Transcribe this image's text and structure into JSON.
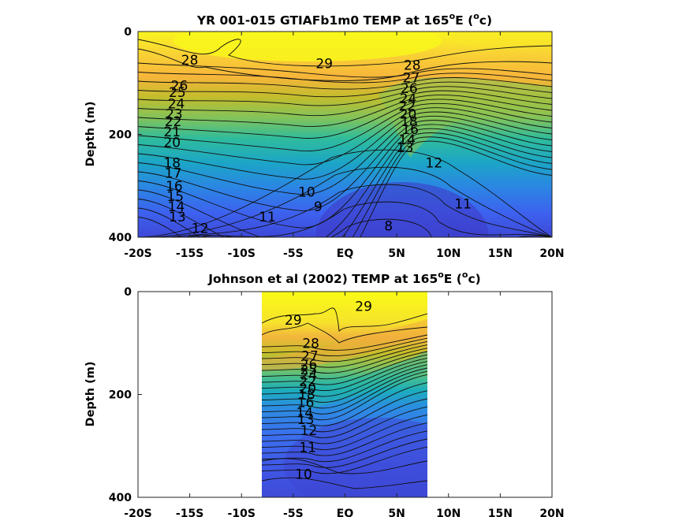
{
  "chart_data": [
    {
      "type": "contour",
      "title": "YR 001-015 GTIAFb1m0 TEMP at 165",
      "title_sup": "o",
      "title_end": "E (",
      "title_sup2": "o",
      "title_tail": "c)",
      "xlabel": "",
      "ylabel": "Depth (m)",
      "x_ticks": [
        "-20S",
        "-15S",
        "-10S",
        "-5S",
        "EQ",
        "5N",
        "10N",
        "15N",
        "20N"
      ],
      "y_ticks": [
        "0",
        "200",
        "400"
      ],
      "xlim": [
        -20,
        20
      ],
      "ylim": [
        0,
        400
      ],
      "y_reversed": true,
      "colormap": "parula",
      "contour_interval": 1,
      "contour_labels": [
        {
          "text": "29",
          "x": -2,
          "y": 62
        },
        {
          "text": "28",
          "x": 6.5,
          "y": 65
        },
        {
          "text": "28",
          "x": -15,
          "y": 55
        },
        {
          "text": "27",
          "x": 6.4,
          "y": 90
        },
        {
          "text": "26",
          "x": 6.2,
          "y": 110
        },
        {
          "text": "26",
          "x": -16,
          "y": 105
        },
        {
          "text": "25",
          "x": -16.2,
          "y": 118
        },
        {
          "text": "24",
          "x": -16.3,
          "y": 140
        },
        {
          "text": "23",
          "x": -16.5,
          "y": 160
        },
        {
          "text": "22",
          "x": -16.6,
          "y": 175
        },
        {
          "text": "21",
          "x": -16.7,
          "y": 195
        },
        {
          "text": "20",
          "x": -16.7,
          "y": 215
        },
        {
          "text": "18",
          "x": -16.7,
          "y": 255
        },
        {
          "text": "17",
          "x": -16.6,
          "y": 275
        },
        {
          "text": "16",
          "x": -16.5,
          "y": 300
        },
        {
          "text": "15",
          "x": -16.4,
          "y": 320
        },
        {
          "text": "14",
          "x": -16.3,
          "y": 340
        },
        {
          "text": "13",
          "x": -16.2,
          "y": 360
        },
        {
          "text": "12",
          "x": -14,
          "y": 382
        },
        {
          "text": "11",
          "x": -7.5,
          "y": 360
        },
        {
          "text": "10",
          "x": -3.7,
          "y": 312
        },
        {
          "text": "9",
          "x": -2.6,
          "y": 340
        },
        {
          "text": "8",
          "x": 4.2,
          "y": 378
        },
        {
          "text": "12",
          "x": 8.6,
          "y": 255
        },
        {
          "text": "11",
          "x": 11.4,
          "y": 335
        },
        {
          "text": "13",
          "x": 5.8,
          "y": 225
        },
        {
          "text": "14",
          "x": 6.0,
          "y": 210
        },
        {
          "text": "16",
          "x": 6.3,
          "y": 190
        },
        {
          "text": "18",
          "x": 6.2,
          "y": 175
        },
        {
          "text": "20",
          "x": 6.1,
          "y": 160
        },
        {
          "text": "22",
          "x": 6.0,
          "y": 145
        },
        {
          "text": "24",
          "x": 6.1,
          "y": 130
        }
      ]
    },
    {
      "type": "contour",
      "title": "Johnson et al (2002) TEMP at 165",
      "title_sup": "o",
      "title_end": "E (",
      "title_sup2": "o",
      "title_tail": "c)",
      "xlabel": "",
      "ylabel": "Depth (m)",
      "x_ticks": [
        "-20S",
        "-15S",
        "-10S",
        "-5S",
        "EQ",
        "5N",
        "10N",
        "15N",
        "20N"
      ],
      "y_ticks": [
        "0",
        "200",
        "400"
      ],
      "xlim": [
        -20,
        20
      ],
      "ylim": [
        0,
        400
      ],
      "y_reversed": true,
      "data_extent_x": [
        -8,
        8
      ],
      "colormap": "parula",
      "contour_interval": 1,
      "contour_labels": [
        {
          "text": "29",
          "x": 1.8,
          "y": 28
        },
        {
          "text": "29",
          "x": -5.0,
          "y": 55
        },
        {
          "text": "28",
          "x": -3.3,
          "y": 100
        },
        {
          "text": "27",
          "x": -3.4,
          "y": 125
        },
        {
          "text": "26",
          "x": -3.5,
          "y": 142
        },
        {
          "text": "25",
          "x": -3.5,
          "y": 152
        },
        {
          "text": "24",
          "x": -3.5,
          "y": 162
        },
        {
          "text": "22",
          "x": -3.6,
          "y": 175
        },
        {
          "text": "20",
          "x": -3.6,
          "y": 188
        },
        {
          "text": "18",
          "x": -3.7,
          "y": 200
        },
        {
          "text": "16",
          "x": -3.8,
          "y": 215
        },
        {
          "text": "14",
          "x": -3.9,
          "y": 235
        },
        {
          "text": "13",
          "x": -3.8,
          "y": 248
        },
        {
          "text": "12",
          "x": -3.5,
          "y": 270
        },
        {
          "text": "11",
          "x": -3.6,
          "y": 303
        },
        {
          "text": "10",
          "x": -4.0,
          "y": 355
        }
      ]
    }
  ]
}
